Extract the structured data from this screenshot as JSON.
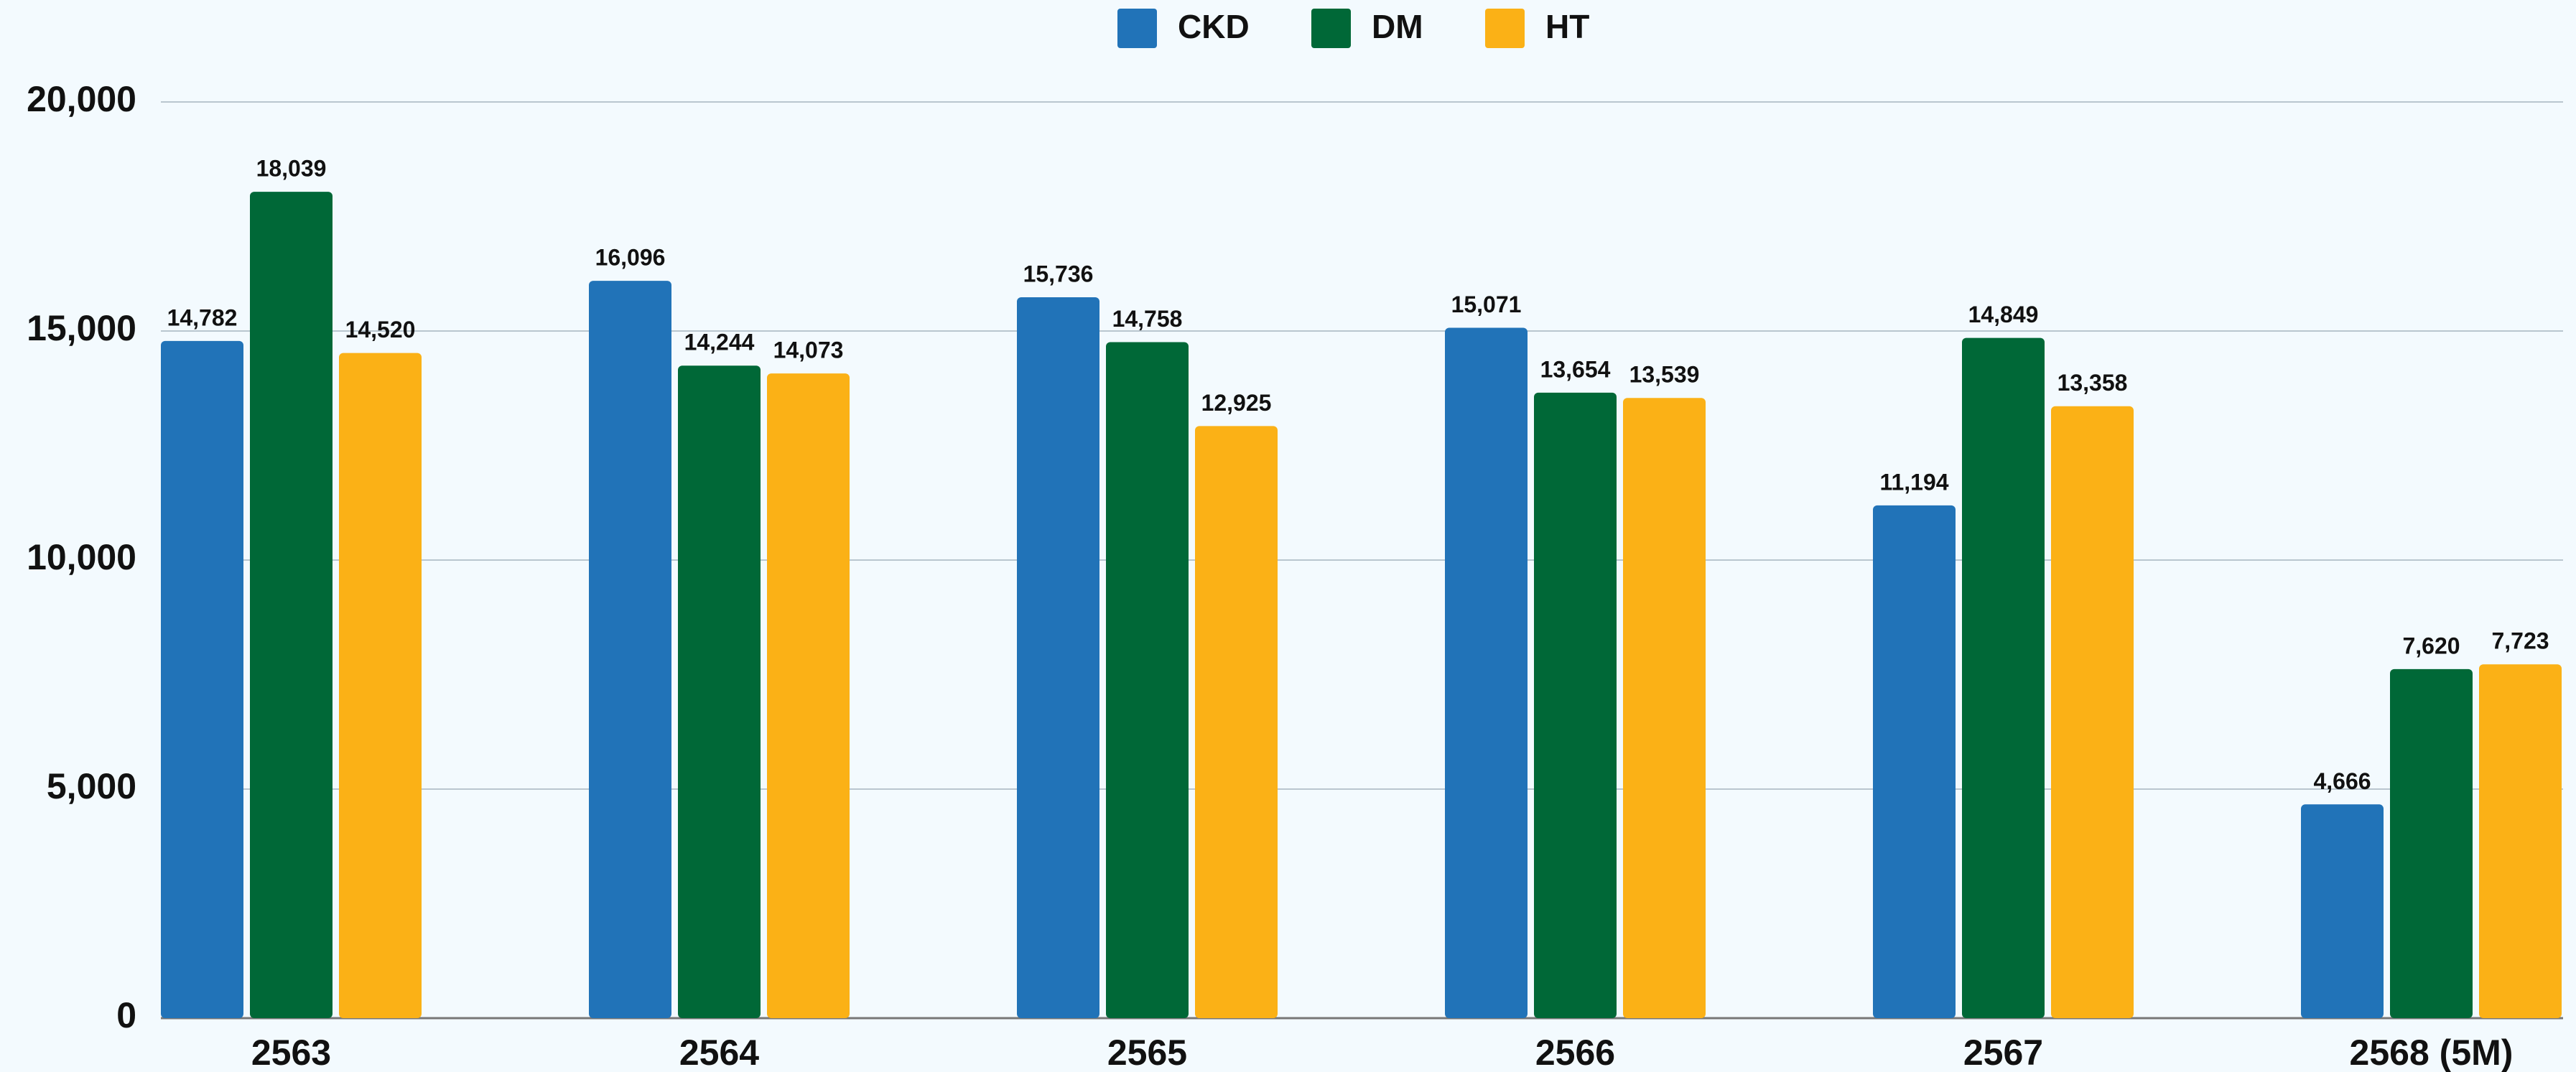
{
  "chart_data": {
    "type": "bar",
    "categories": [
      "2563",
      "2564",
      "2565",
      "2566",
      "2567",
      "2568 (5M)"
    ],
    "series": [
      {
        "name": "CKD",
        "color": "#2173b8",
        "values": [
          14782,
          16096,
          15736,
          15071,
          11194,
          4666
        ],
        "value_labels": [
          "14,782",
          "16,096",
          "15,736",
          "15,071",
          "11,194",
          "4,666"
        ]
      },
      {
        "name": "DM",
        "color": "#006837",
        "values": [
          18039,
          14244,
          14758,
          13654,
          14849,
          7620
        ],
        "value_labels": [
          "18,039",
          "14,244",
          "14,758",
          "13,654",
          "14,849",
          "7,620"
        ]
      },
      {
        "name": "HT",
        "color": "#fbb116",
        "values": [
          14520,
          14073,
          12925,
          13539,
          13358,
          7723
        ],
        "value_labels": [
          "14,520",
          "14,073",
          "12,925",
          "13,539",
          "13,358",
          "7,723"
        ]
      }
    ],
    "ylim": [
      0,
      20000
    ],
    "yticks": [
      0,
      {
        "value": 5000,
        "label": "5,000"
      },
      {
        "value": 10000,
        "label": "10,000"
      },
      {
        "value": 15000,
        "label": "15,000"
      },
      {
        "value": 20000,
        "label": "20,000"
      }
    ],
    "grid": true,
    "legend": "top"
  }
}
